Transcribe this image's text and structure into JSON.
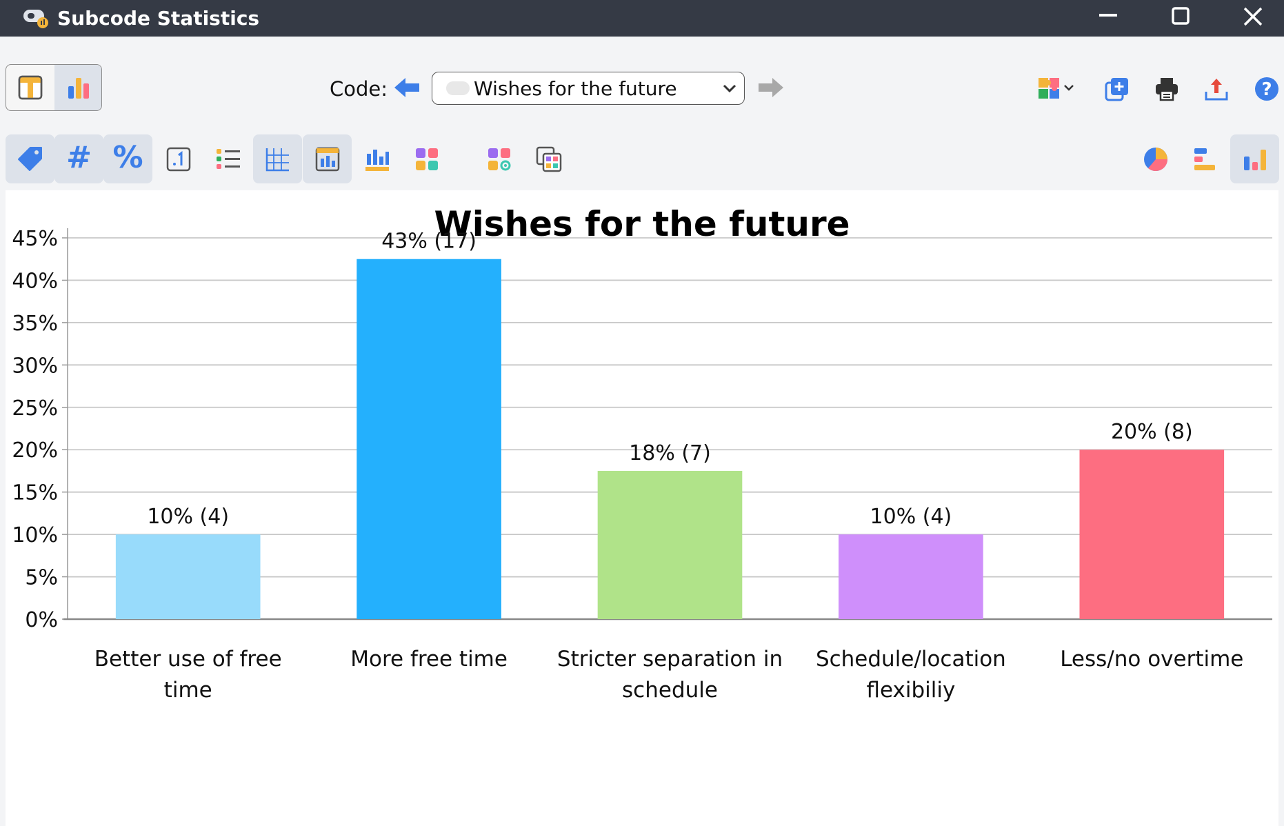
{
  "window": {
    "title": "Subcode Statistics",
    "icons": [
      "app-icon",
      "minimize-icon",
      "maximize-icon",
      "close-icon"
    ]
  },
  "toolbar": {
    "code_label": "Code:",
    "selected_code": "Wishes for the future",
    "icons": [
      "table-view-icon",
      "chart-view-icon",
      "arrow-left-icon",
      "arrow-right-icon",
      "chevron-down-icon",
      "puzzle-icon",
      "add-copy-icon",
      "print-icon",
      "export-icon",
      "help-icon"
    ],
    "help_glyph": "?"
  },
  "format_toolbar": {
    "hash_glyph": "#",
    "percent_glyph": "%",
    "icons": [
      "tag-icon",
      "hash-icon",
      "percent-icon",
      "decimal-icon",
      "list-icon",
      "grid-icon",
      "chart-frame-icon",
      "bar-labels-icon",
      "color-tiles-icon",
      "color-settings-icon",
      "copy-colors-icon",
      "pie-chart-icon",
      "horizontal-bar-icon",
      "vertical-bar-icon"
    ]
  },
  "chart_data": {
    "type": "bar",
    "title": "Wishes for the future",
    "xlabel": "",
    "ylabel": "",
    "ylim": [
      0,
      45
    ],
    "y_ticks": [
      "0%",
      "5%",
      "10%",
      "15%",
      "20%",
      "25%",
      "30%",
      "35%",
      "40%",
      "45%"
    ],
    "categories": [
      [
        "Better use of free",
        "time"
      ],
      [
        "More free time"
      ],
      [
        "Stricter separation in",
        "schedule"
      ],
      [
        "Schedule/location",
        "flexibiliy"
      ],
      [
        "Less/no overtime"
      ]
    ],
    "values": [
      10,
      42.5,
      17.5,
      10,
      20
    ],
    "data_labels": [
      "10% (4)",
      "43% (17)",
      "18% (7)",
      "10% (4)",
      "20% (8)"
    ],
    "colors": [
      "#98dbfb",
      "#24b0fd",
      "#b0e389",
      "#cf8ffb",
      "#fd6e81"
    ],
    "grid": true,
    "legend": "none"
  }
}
